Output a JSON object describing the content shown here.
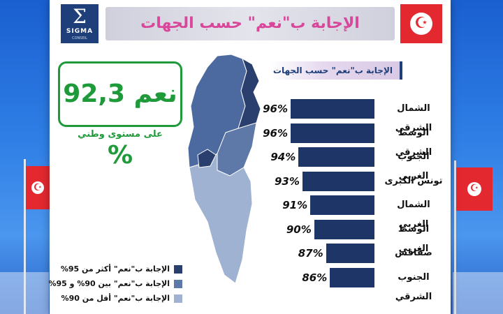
{
  "header": {
    "logo_text": "SIGMA",
    "logo_sub": "CONSEIL",
    "title": "الإجابة ب\"نعم\" حسب الجهات"
  },
  "summary": {
    "headline": "نعم 92,3 %",
    "caption": "على مستوى وطني"
  },
  "panel": {
    "title": "الإجابة ب\"نعم\" حسب الجهات"
  },
  "chart_data": {
    "type": "bar",
    "title": "الإجابة ب\"نعم\" حسب الجهات",
    "categories": [
      "الشمال الشرقي",
      "الوسط الشرقي",
      "الجنوب الغربي",
      "تونس الكبرى",
      "الشمال الغربي",
      "الوسط الغربي",
      "صفاقس",
      "الجنوب الشرقي"
    ],
    "values": [
      96,
      96,
      94,
      93,
      91,
      90,
      87,
      86
    ],
    "labels": [
      "96%",
      "96%",
      "94%",
      "93%",
      "91%",
      "90%",
      "87%",
      "86%"
    ],
    "color": "#1e3568",
    "orientation": "horizontal"
  },
  "legend": [
    {
      "label": "الإجابة ب\"نعم\"  أكثر من 95%",
      "color": "#2b3f6e"
    },
    {
      "label": "الإجابة ب\"نعم\"  بين  90% و 95%",
      "color": "#5e79a8"
    },
    {
      "label": "الإجابة ب\"نعم\"  أقل من 90%",
      "color": "#9fb2d2"
    }
  ],
  "colors": {
    "accent_green": "#1f9a3a",
    "title_pink": "#d9479b",
    "flag_red": "#e3282f"
  }
}
